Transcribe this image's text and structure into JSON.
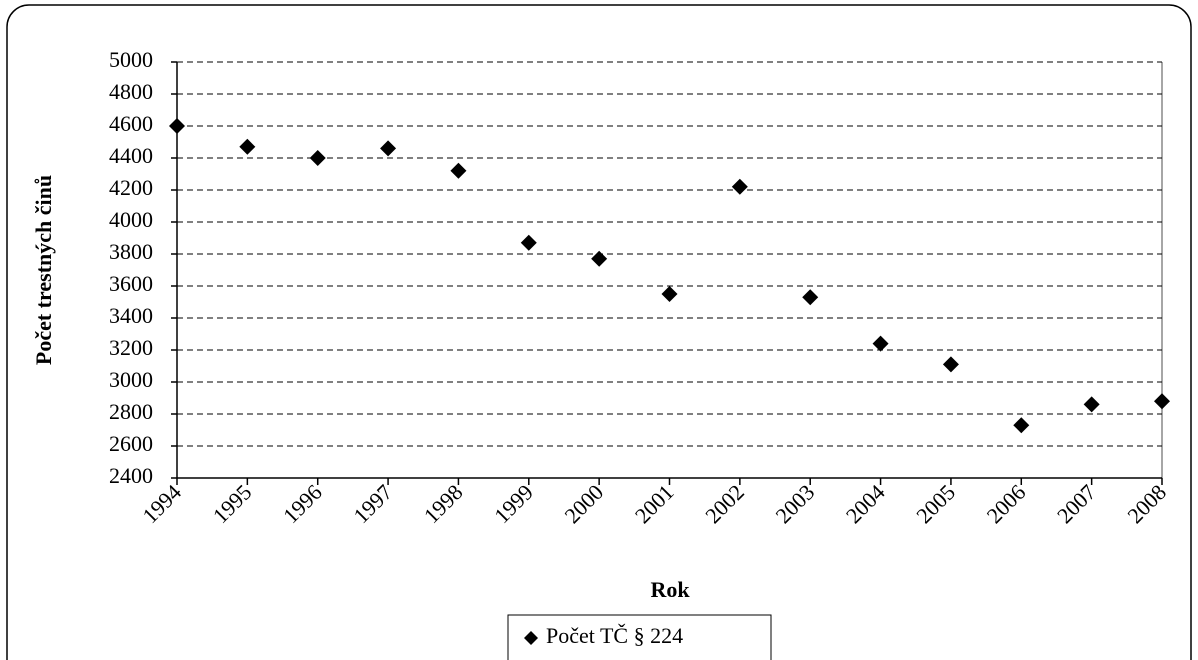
{
  "chart_data": {
    "type": "scatter",
    "x_label": "Rok",
    "y_label": "Počet trestných činů",
    "x": [
      1994,
      1995,
      1996,
      1997,
      1998,
      1999,
      2000,
      2001,
      2002,
      2003,
      2004,
      2005,
      2006,
      2007,
      2008
    ],
    "series": [
      {
        "name": "Počet TČ § 224",
        "color": "#000000",
        "values": [
          4600,
          4470,
          4400,
          4460,
          4320,
          3870,
          3770,
          3550,
          4220,
          3530,
          3240,
          3110,
          2730,
          2860,
          2880
        ]
      }
    ],
    "xlim": [
      1994,
      2008
    ],
    "xticks": [
      1994,
      1995,
      1996,
      1997,
      1998,
      1999,
      2000,
      2001,
      2002,
      2003,
      2004,
      2005,
      2006,
      2007,
      2008
    ],
    "ylim": [
      2400,
      5000
    ],
    "yticks": [
      2400,
      2600,
      2800,
      3000,
      3200,
      3400,
      3600,
      3800,
      4000,
      4200,
      4400,
      4600,
      4800,
      5000
    ],
    "grid": true,
    "legend": "bottom"
  }
}
